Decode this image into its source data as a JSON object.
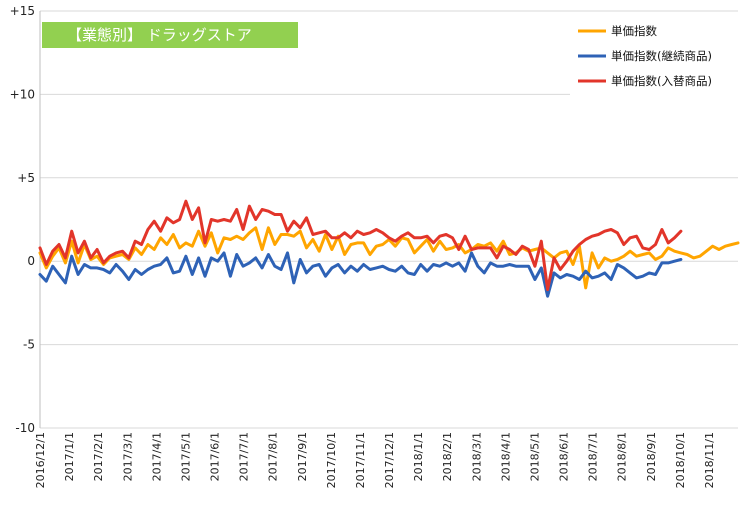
{
  "chart_data": {
    "type": "line",
    "title": "【業態別】 ドラッグストア",
    "xlabel": "",
    "ylabel": "",
    "ylim": [
      -10,
      15
    ],
    "yticks": [
      15,
      10,
      5,
      0,
      -5,
      -10
    ],
    "ytick_labels": [
      "+15",
      "+10",
      "+5",
      "0",
      "-5",
      "-10"
    ],
    "grid": true,
    "legend_position": "top-right",
    "x_tick_labels": [
      "2016/12/1",
      "2017/1/1",
      "2017/2/1",
      "2017/3/1",
      "2017/4/1",
      "2017/5/1",
      "2017/6/1",
      "2017/7/1",
      "2017/8/1",
      "2017/9/1",
      "2017/10/1",
      "2017/11/1",
      "2017/12/1",
      "2018/1/1",
      "2018/2/1",
      "2018/3/1",
      "2018/4/1",
      "2018/5/1",
      "2018/6/1",
      "2018/7/1",
      "2018/8/1",
      "2018/9/1",
      "2018/10/1",
      "2018/11/1"
    ],
    "colors": {
      "title_bg": "#92d050",
      "grid": "#d9d9d9",
      "axis": "#bfbfbf"
    },
    "series": [
      {
        "name": "単価指数",
        "color": "#ffa500",
        "values": [
          0.5,
          -0.4,
          0.3,
          0.8,
          -0.1,
          1.2,
          -0.1,
          1.0,
          0.1,
          0.3,
          -0.2,
          0.2,
          0.3,
          0.4,
          0.1,
          0.8,
          0.4,
          1.0,
          0.7,
          1.4,
          1.0,
          1.6,
          0.8,
          1.1,
          0.9,
          1.8,
          0.9,
          1.7,
          0.5,
          1.4,
          1.3,
          1.5,
          1.3,
          1.7,
          2.0,
          0.7,
          2.0,
          1.0,
          1.6,
          1.6,
          1.5,
          1.8,
          0.8,
          1.3,
          0.6,
          1.6,
          0.7,
          1.5,
          0.4,
          1.0,
          1.1,
          1.1,
          0.4,
          0.9,
          1.0,
          1.3,
          0.9,
          1.4,
          1.3,
          0.5,
          0.9,
          1.3,
          0.6,
          1.2,
          0.7,
          0.8,
          1.0,
          0.5,
          0.7,
          1.0,
          0.9,
          1.1,
          0.6,
          1.2,
          0.4,
          0.5,
          0.8,
          0.6,
          0.7,
          0.8,
          0.5,
          0.2,
          0.5,
          0.6,
          -0.2,
          0.9,
          -1.6,
          0.5,
          -0.4,
          0.2,
          0.0,
          0.1,
          0.3,
          0.6,
          0.3,
          0.4,
          0.5,
          0.1,
          0.3,
          0.8,
          0.6,
          0.5,
          0.4,
          0.2,
          0.3,
          0.6,
          0.9,
          0.7,
          0.9,
          1.0,
          1.1
        ]
      },
      {
        "name": "単価指数(継続商品)",
        "color": "#2e62b6",
        "values": [
          -0.8,
          -1.2,
          -0.3,
          -0.8,
          -1.3,
          0.3,
          -0.8,
          -0.2,
          -0.4,
          -0.4,
          -0.5,
          -0.7,
          -0.2,
          -0.6,
          -1.1,
          -0.5,
          -0.8,
          -0.5,
          -0.3,
          -0.2,
          0.2,
          -0.7,
          -0.6,
          0.3,
          -0.8,
          0.2,
          -0.9,
          0.2,
          0.0,
          0.5,
          -0.9,
          0.4,
          -0.3,
          -0.1,
          0.2,
          -0.4,
          0.4,
          -0.3,
          -0.5,
          0.5,
          -1.3,
          0.1,
          -0.7,
          -0.3,
          -0.2,
          -0.9,
          -0.4,
          -0.2,
          -0.7,
          -0.3,
          -0.6,
          -0.2,
          -0.5,
          -0.4,
          -0.3,
          -0.5,
          -0.6,
          -0.3,
          -0.7,
          -0.8,
          -0.2,
          -0.6,
          -0.2,
          -0.3,
          -0.1,
          -0.3,
          -0.1,
          -0.6,
          0.5,
          -0.3,
          -0.7,
          -0.1,
          -0.3,
          -0.3,
          -0.2,
          -0.3,
          -0.3,
          -0.3,
          -1.1,
          -0.4,
          -2.1,
          -0.7,
          -1.0,
          -0.8,
          -0.9,
          -1.1,
          -0.6,
          -1.0,
          -0.9,
          -0.7,
          -1.1,
          -0.2,
          -0.4,
          -0.7,
          -1.0,
          -0.9,
          -0.7,
          -0.8,
          -0.1,
          -0.1,
          0.0,
          0.1
        ]
      },
      {
        "name": "単価指数(入替商品)",
        "color": "#e2352a",
        "values": [
          0.8,
          -0.2,
          0.6,
          1.0,
          0.2,
          1.8,
          0.5,
          1.2,
          0.2,
          0.7,
          -0.1,
          0.3,
          0.5,
          0.6,
          0.2,
          1.2,
          1.0,
          1.9,
          2.4,
          1.8,
          2.6,
          2.3,
          2.5,
          3.6,
          2.5,
          3.2,
          1.1,
          2.5,
          2.4,
          2.5,
          2.4,
          3.1,
          1.9,
          3.3,
          2.5,
          3.1,
          3.0,
          2.8,
          2.8,
          1.8,
          2.4,
          2.0,
          2.6,
          1.6,
          1.7,
          1.8,
          1.4,
          1.4,
          1.7,
          1.4,
          1.8,
          1.6,
          1.7,
          1.9,
          1.7,
          1.4,
          1.2,
          1.5,
          1.7,
          1.4,
          1.4,
          1.5,
          1.1,
          1.5,
          1.6,
          1.4,
          0.7,
          1.5,
          0.7,
          0.8,
          0.8,
          0.8,
          0.2,
          0.9,
          0.7,
          0.4,
          0.9,
          0.7,
          -0.3,
          1.2,
          -1.7,
          0.2,
          -0.5,
          0.0,
          0.6,
          1.0,
          1.3,
          1.5,
          1.6,
          1.8,
          1.9,
          1.7,
          1.0,
          1.4,
          1.5,
          0.8,
          0.7,
          1.0,
          1.9,
          1.1,
          1.4,
          1.8
        ]
      }
    ]
  }
}
